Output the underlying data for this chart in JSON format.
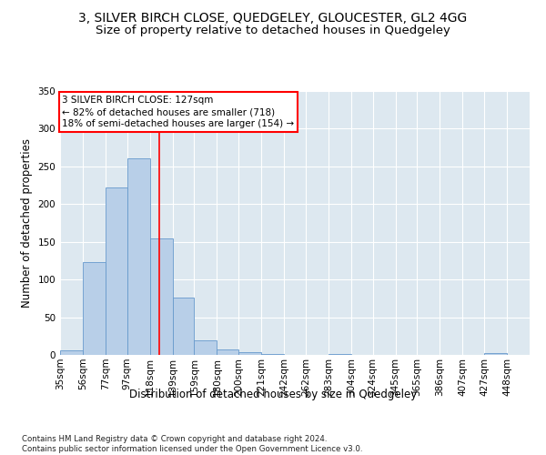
{
  "title": "3, SILVER BIRCH CLOSE, QUEDGELEY, GLOUCESTER, GL2 4GG",
  "subtitle": "Size of property relative to detached houses in Quedgeley",
  "xlabel": "Distribution of detached houses by size in Quedgeley",
  "ylabel": "Number of detached properties",
  "bar_color": "#b8cfe8",
  "bar_edge_color": "#6699cc",
  "background_color": "#dde8f0",
  "grid_color": "#ffffff",
  "bin_labels": [
    "35sqm",
    "56sqm",
    "77sqm",
    "97sqm",
    "118sqm",
    "139sqm",
    "159sqm",
    "180sqm",
    "200sqm",
    "221sqm",
    "242sqm",
    "262sqm",
    "283sqm",
    "304sqm",
    "324sqm",
    "345sqm",
    "365sqm",
    "386sqm",
    "407sqm",
    "427sqm",
    "448sqm"
  ],
  "bar_heights": [
    6,
    123,
    222,
    261,
    154,
    76,
    19,
    7,
    4,
    1,
    0,
    0,
    1,
    0,
    0,
    0,
    0,
    0,
    0,
    2,
    0
  ],
  "bin_edges": [
    35,
    56,
    77,
    97,
    118,
    139,
    159,
    180,
    200,
    221,
    242,
    262,
    283,
    304,
    324,
    345,
    365,
    386,
    407,
    427,
    448,
    469
  ],
  "red_line_x": 127,
  "annotation_line1": "3 SILVER BIRCH CLOSE: 127sqm",
  "annotation_line2": "← 82% of detached houses are smaller (718)",
  "annotation_line3": "18% of semi-detached houses are larger (154) →",
  "annotation_box_color": "white",
  "annotation_box_edge_color": "red",
  "ylim": [
    0,
    350
  ],
  "yticks": [
    0,
    50,
    100,
    150,
    200,
    250,
    300,
    350
  ],
  "footnote": "Contains HM Land Registry data © Crown copyright and database right 2024.\nContains public sector information licensed under the Open Government Licence v3.0.",
  "title_fontsize": 10,
  "subtitle_fontsize": 9.5,
  "axis_label_fontsize": 8.5,
  "tick_fontsize": 7.5,
  "annotation_fontsize": 7.5
}
